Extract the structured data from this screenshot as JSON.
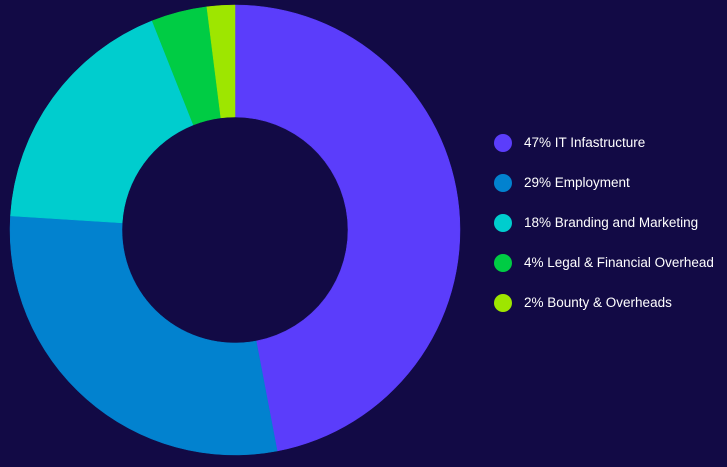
{
  "background_color": "#120a45",
  "chart_data": {
    "type": "donut",
    "title": "",
    "legend_position": "right",
    "start_angle_deg": 0,
    "direction": "clockwise",
    "slices": [
      {
        "label": "47% IT Infastructure",
        "value": 47,
        "color": "#5b3dfb"
      },
      {
        "label": "29% Employment",
        "value": 29,
        "color": "#0282cf"
      },
      {
        "label": "18% Branding and Marketing",
        "value": 18,
        "color": "#00cdce"
      },
      {
        "label": "4% Legal & Financial Overhead",
        "value": 4,
        "color": "#00cc44"
      },
      {
        "label": "2% Bounty & Overheads",
        "value": 2,
        "color": "#9ee600"
      }
    ]
  }
}
